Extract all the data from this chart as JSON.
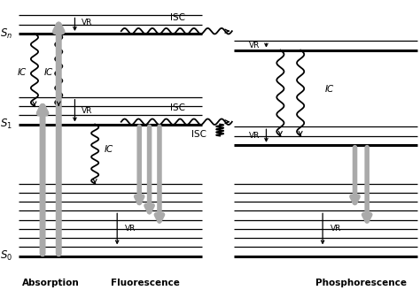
{
  "bg_color": "#ffffff",
  "fig_width": 4.74,
  "fig_height": 3.37,
  "dpi": 100,
  "xlim": [
    0,
    10
  ],
  "ylim": [
    -1.0,
    6.2
  ],
  "S0_y": 0.0,
  "S0_vibs": [
    0.22,
    0.44,
    0.66,
    0.88,
    1.1,
    1.32,
    1.54,
    1.76
  ],
  "S0_x0": 0.05,
  "S0_x1": 4.6,
  "S0T_x0": 5.4,
  "S0T_x1": 9.95,
  "S1_y": 3.2,
  "S1_vibs": [
    3.42,
    3.64,
    3.86
  ],
  "S1_x0": 0.05,
  "S1_x1": 4.6,
  "Sn_y": 5.4,
  "Sn_vibs": [
    5.62,
    5.84
  ],
  "Sn_x0": 0.05,
  "Sn_x1": 4.6,
  "T1_y": 2.7,
  "T1_vibs": [
    2.92,
    3.14
  ],
  "T1_x0": 5.4,
  "T1_x1": 9.95,
  "Tn_y": 5.0,
  "Tn_vibs": [
    5.22
  ],
  "Tn_x0": 5.4,
  "Tn_x1": 9.95,
  "main_lw": 2.2,
  "vib_lw": 0.9,
  "wavy_lw": 1.3,
  "big_arrow_lw": 5,
  "big_arrow_color": "#aaaaaa",
  "small_arrow_color": "#000000",
  "line_color": "#000000",
  "text_color": "#000000",
  "label_fontsize": 7.5,
  "small_fontsize": 6.5,
  "state_fontsize": 8.5
}
